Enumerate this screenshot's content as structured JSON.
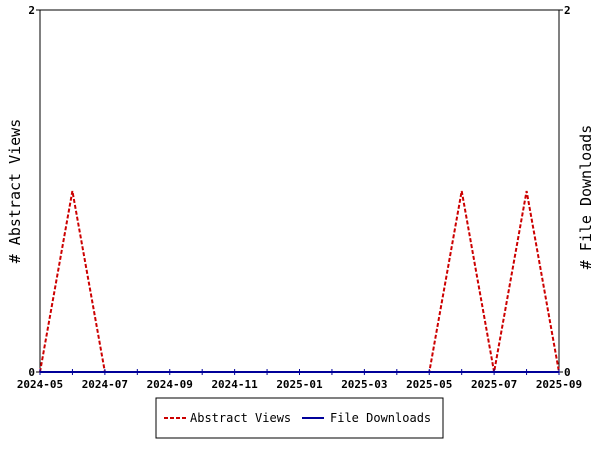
{
  "chart_data": {
    "type": "line",
    "title": "",
    "x_tick_labels": [
      "2024-05",
      "2024-07",
      "2024-09",
      "2024-11",
      "2025-01",
      "2025-03",
      "2025-05",
      "2025-07",
      "2025-09"
    ],
    "x_months": [
      "2024-05",
      "2024-06",
      "2024-07",
      "2024-08",
      "2024-09",
      "2024-10",
      "2024-11",
      "2024-12",
      "2025-01",
      "2025-02",
      "2025-03",
      "2025-04",
      "2025-05",
      "2025-06",
      "2025-07",
      "2025-08",
      "2025-09"
    ],
    "xlim": [
      "2024-05",
      "2025-09"
    ],
    "ylabel_left": "# Abstract Views",
    "ylabel_right": "# File Downloads",
    "ylim_left": [
      0,
      2
    ],
    "ylim_right": [
      0,
      2
    ],
    "y_tick_labels_left": [
      "0",
      "2"
    ],
    "y_tick_labels_right": [
      "0",
      "2"
    ],
    "grid": false,
    "legend_position": "bottom-center",
    "series": [
      {
        "name": "Abstract Views",
        "axis": "left",
        "color": "#cc0000",
        "dash": "dashed",
        "values": [
          0,
          1,
          0,
          0,
          0,
          0,
          0,
          0,
          0,
          0,
          0,
          0,
          0,
          1,
          0,
          1,
          0
        ]
      },
      {
        "name": "File Downloads",
        "axis": "right",
        "color": "#000099",
        "dash": "solid",
        "values": [
          0,
          0,
          0,
          0,
          0,
          0,
          0,
          0,
          0,
          0,
          0,
          0,
          0,
          0,
          0,
          0,
          0
        ]
      }
    ]
  }
}
